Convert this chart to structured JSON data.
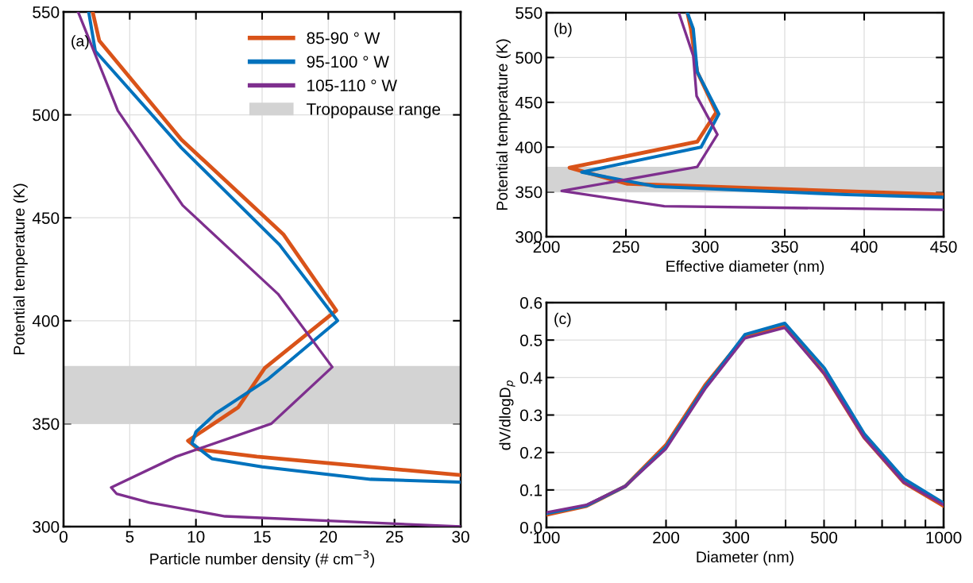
{
  "chart_data": [
    {
      "type": "line",
      "annotations": [
        "(a)"
      ],
      "xlabel": "Particle number density (# cm$^{−3}$)",
      "ylabel": "Potential temperature (K)",
      "xlim": [
        0,
        30
      ],
      "xticks": [
        0,
        5,
        10,
        15,
        20,
        25,
        30
      ],
      "ylim": [
        300,
        550
      ],
      "yticks": [
        300,
        350,
        400,
        450,
        500,
        550
      ],
      "grid": true,
      "legend": "top right",
      "line_style": "solid",
      "bands": [
        {
          "axis": "y",
          "from": 350,
          "to": 378,
          "label": "Tropopause range",
          "color": "#d3d3d3"
        }
      ],
      "series": [
        {
          "name": "85-90 ° W",
          "color": "#d95319",
          "x": [
            2.2,
            2.7,
            8.9,
            16.6,
            20.6,
            15.2,
            13.2,
            9.4,
            10.2,
            14.6,
            30
          ],
          "values": [
            550,
            536,
            488,
            442,
            405,
            377,
            358,
            341.7,
            337.5,
            334,
            325
          ]
        },
        {
          "name": "95-100 ° W",
          "color": "#0072bd",
          "x": [
            1.9,
            2.4,
            8.9,
            16.3,
            20.7,
            15.4,
            11.5,
            10.0,
            9.7,
            11.2,
            15.0,
            23.2,
            30
          ],
          "values": [
            550,
            531,
            484,
            437,
            400,
            371.4,
            355,
            346,
            340.5,
            333,
            329,
            323,
            321.6
          ]
        },
        {
          "name": "105-110 ° W",
          "color": "#7e2f8e",
          "x": [
            1.1,
            4.1,
            9.0,
            16.2,
            20.3,
            15.7,
            8.5,
            3.6,
            4.0,
            6.5,
            12.2,
            30
          ],
          "values": [
            550,
            502,
            456,
            413,
            377.5,
            350,
            334,
            319,
            316,
            311.6,
            305,
            300
          ]
        }
      ]
    },
    {
      "type": "line",
      "annotations": [
        "(b)"
      ],
      "xlabel": "Effective diameter (nm)",
      "ylabel": "Potential temperature (K)",
      "xlim": [
        200,
        450
      ],
      "xticks": [
        200,
        250,
        300,
        350,
        400,
        450
      ],
      "ylim": [
        300,
        550
      ],
      "yticks": [
        300,
        350,
        400,
        450,
        500,
        550
      ],
      "grid": true,
      "line_style": "solid",
      "bands": [
        {
          "axis": "y",
          "from": 350,
          "to": 378,
          "color": "#d3d3d3"
        }
      ],
      "series": [
        {
          "color": "#d95319",
          "x": [
            288.7,
            290.9,
            294.9,
            306.9,
            294.9,
            214.5,
            250.9,
            450
          ],
          "values": [
            550,
            532,
            484,
            439,
            406,
            377,
            359,
            347
          ]
        },
        {
          "color": "#0072bd",
          "x": [
            288.7,
            292.4,
            294.9,
            308.5,
            297.3,
            222.2,
            268.7,
            389,
            450
          ],
          "values": [
            550,
            532,
            484,
            437,
            400,
            372,
            356,
            347,
            344
          ]
        },
        {
          "color": "#7e2f8e",
          "x": [
            283.3,
            292.4,
            294.5,
            307.6,
            294.9,
            209.6,
            274.2,
            450
          ],
          "values": [
            550,
            502,
            457,
            414,
            378,
            351,
            334,
            330
          ]
        }
      ]
    },
    {
      "type": "line",
      "annotations": [
        "(c)"
      ],
      "xlabel": "Diameter (nm)",
      "ylabel": "dV/dlogD$_{p}$",
      "log": "x",
      "xlim": [
        100,
        1000
      ],
      "xticks": [
        100,
        200,
        300,
        {
          "value": 400,
          "label": null
        },
        500,
        {
          "value": 600,
          "label": null
        },
        {
          "value": 700,
          "label": null
        },
        {
          "value": 800,
          "label": null
        },
        {
          "value": 900,
          "label": null
        },
        1000
      ],
      "ylim": [
        0,
        0.6
      ],
      "yticks": [
        {
          "value": 0,
          "label": "0.0"
        },
        0.1,
        0.2,
        0.3,
        0.4,
        0.5,
        0.6
      ],
      "grid": true,
      "line_style": "solid",
      "x": [
        100,
        126,
        158,
        200,
        251,
        316,
        398,
        501,
        631,
        794,
        1000
      ],
      "series": [
        {
          "color": "#d95319",
          "values": [
            0.034,
            0.057,
            0.11,
            0.22,
            0.38,
            0.51,
            0.54,
            0.41,
            0.24,
            0.12,
            0.057
          ]
        },
        {
          "color": "#0072bd",
          "values": [
            0.037,
            0.058,
            0.11,
            0.215,
            0.375,
            0.515,
            0.545,
            0.425,
            0.25,
            0.13,
            0.065
          ]
        },
        {
          "color": "#7e2f8e",
          "values": [
            0.04,
            0.06,
            0.11,
            0.21,
            0.37,
            0.505,
            0.533,
            0.41,
            0.24,
            0.12,
            0.06
          ]
        }
      ]
    }
  ]
}
